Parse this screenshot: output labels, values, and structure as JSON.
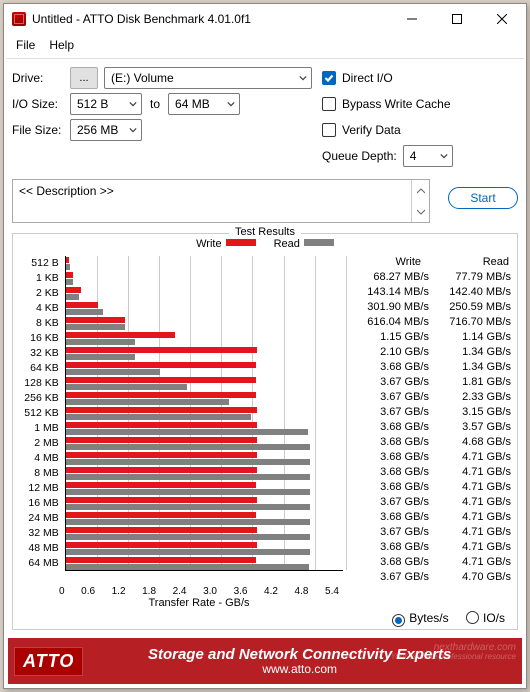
{
  "window": {
    "title": "Untitled - ATTO Disk Benchmark 4.01.0f1",
    "menu": {
      "file": "File",
      "help": "Help"
    }
  },
  "controls": {
    "drive": {
      "label": "Drive:",
      "browse": "...",
      "value": "(E:) Volume"
    },
    "iosize": {
      "label": "I/O Size:",
      "from": "512 B",
      "to_label": "to",
      "to": "64 MB"
    },
    "filesize": {
      "label": "File Size:",
      "value": "256 MB"
    },
    "direct_io": {
      "label": "Direct I/O",
      "checked": true
    },
    "bypass": {
      "label": "Bypass Write Cache",
      "checked": false
    },
    "verify": {
      "label": "Verify Data",
      "checked": false
    },
    "queue": {
      "label": "Queue Depth:",
      "value": "4"
    },
    "description_label": "<< Description >>",
    "start": "Start"
  },
  "chart": {
    "legend_title": "Test Results",
    "write_label": "Write",
    "read_label": "Read",
    "write_color": "#e4161d",
    "read_color": "#808080",
    "x_caption": "Transfer Rate - GB/s",
    "x_ticks": [
      "0",
      "0.6",
      "1.2",
      "1.8",
      "2.4",
      "3.0",
      "3.6",
      "4.2",
      "4.8",
      "5.4"
    ],
    "x_max": 5.4,
    "results_header": {
      "write": "Write",
      "read": "Read"
    },
    "units": {
      "bytes": "Bytes/s",
      "ios": "IO/s",
      "selected": "bytes"
    },
    "rows": [
      {
        "label": "512 B",
        "write_gbs": 0.06827,
        "read_gbs": 0.07779,
        "write_txt": "68.27 MB/s",
        "read_txt": "77.79 MB/s"
      },
      {
        "label": "1 KB",
        "write_gbs": 0.14314,
        "read_gbs": 0.1424,
        "write_txt": "143.14 MB/s",
        "read_txt": "142.40 MB/s"
      },
      {
        "label": "2 KB",
        "write_gbs": 0.3019,
        "read_gbs": 0.25059,
        "write_txt": "301.90 MB/s",
        "read_txt": "250.59 MB/s"
      },
      {
        "label": "4 KB",
        "write_gbs": 0.61604,
        "read_gbs": 0.7167,
        "write_txt": "616.04 MB/s",
        "read_txt": "716.70 MB/s"
      },
      {
        "label": "8 KB",
        "write_gbs": 1.15,
        "read_gbs": 1.14,
        "write_txt": "1.15 GB/s",
        "read_txt": "1.14 GB/s"
      },
      {
        "label": "16 KB",
        "write_gbs": 2.1,
        "read_gbs": 1.34,
        "write_txt": "2.10 GB/s",
        "read_txt": "1.34 GB/s"
      },
      {
        "label": "32 KB",
        "write_gbs": 3.68,
        "read_gbs": 1.34,
        "write_txt": "3.68 GB/s",
        "read_txt": "1.34 GB/s"
      },
      {
        "label": "64 KB",
        "write_gbs": 3.67,
        "read_gbs": 1.81,
        "write_txt": "3.67 GB/s",
        "read_txt": "1.81 GB/s"
      },
      {
        "label": "128 KB",
        "write_gbs": 3.67,
        "read_gbs": 2.33,
        "write_txt": "3.67 GB/s",
        "read_txt": "2.33 GB/s"
      },
      {
        "label": "256 KB",
        "write_gbs": 3.67,
        "read_gbs": 3.15,
        "write_txt": "3.67 GB/s",
        "read_txt": "3.15 GB/s"
      },
      {
        "label": "512 KB",
        "write_gbs": 3.68,
        "read_gbs": 3.57,
        "write_txt": "3.68 GB/s",
        "read_txt": "3.57 GB/s"
      },
      {
        "label": "1 MB",
        "write_gbs": 3.68,
        "read_gbs": 4.68,
        "write_txt": "3.68 GB/s",
        "read_txt": "4.68 GB/s"
      },
      {
        "label": "2 MB",
        "write_gbs": 3.68,
        "read_gbs": 4.71,
        "write_txt": "3.68 GB/s",
        "read_txt": "4.71 GB/s"
      },
      {
        "label": "4 MB",
        "write_gbs": 3.68,
        "read_gbs": 4.71,
        "write_txt": "3.68 GB/s",
        "read_txt": "4.71 GB/s"
      },
      {
        "label": "8 MB",
        "write_gbs": 3.68,
        "read_gbs": 4.71,
        "write_txt": "3.68 GB/s",
        "read_txt": "4.71 GB/s"
      },
      {
        "label": "12 MB",
        "write_gbs": 3.67,
        "read_gbs": 4.71,
        "write_txt": "3.67 GB/s",
        "read_txt": "4.71 GB/s"
      },
      {
        "label": "16 MB",
        "write_gbs": 3.68,
        "read_gbs": 4.71,
        "write_txt": "3.68 GB/s",
        "read_txt": "4.71 GB/s"
      },
      {
        "label": "24 MB",
        "write_gbs": 3.67,
        "read_gbs": 4.71,
        "write_txt": "3.67 GB/s",
        "read_txt": "4.71 GB/s"
      },
      {
        "label": "32 MB",
        "write_gbs": 3.68,
        "read_gbs": 4.71,
        "write_txt": "3.68 GB/s",
        "read_txt": "4.71 GB/s"
      },
      {
        "label": "48 MB",
        "write_gbs": 3.68,
        "read_gbs": 4.71,
        "write_txt": "3.68 GB/s",
        "read_txt": "4.71 GB/s"
      },
      {
        "label": "64 MB",
        "write_gbs": 3.67,
        "read_gbs": 4.7,
        "write_txt": "3.67 GB/s",
        "read_txt": "4.70 GB/s"
      }
    ]
  },
  "footer": {
    "logo": "ATTO",
    "tagline": "Storage and Network Connectivity Experts",
    "url": "www.atto.com",
    "watermark_top": "nexthardware.com",
    "watermark_bottom": "Your ultimate professional resource"
  }
}
